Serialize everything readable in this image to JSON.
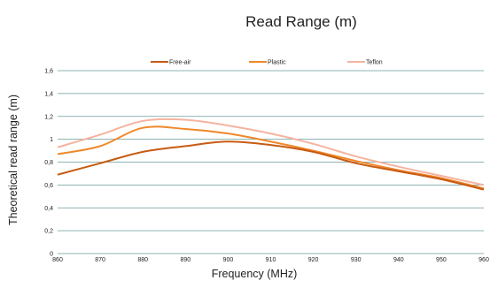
{
  "chart_data": {
    "type": "line",
    "title": "Read Range (m)",
    "xlabel": "Frequency (MHz)",
    "ylabel": "Theoretical read range (m)",
    "xlim": [
      860,
      960
    ],
    "ylim": [
      0,
      1.6
    ],
    "x_ticks": [
      "860",
      "870",
      "880",
      "890",
      "900",
      "910",
      "920",
      "930",
      "940",
      "950",
      "960"
    ],
    "y_ticks": [
      "0",
      "0,2",
      "0,4",
      "0,6",
      "0,8",
      "1",
      "1,2",
      "1,4",
      "1,6"
    ],
    "grid": "horizontal",
    "legend_position": "top",
    "x": [
      860,
      870,
      880,
      890,
      900,
      910,
      920,
      930,
      940,
      950,
      960
    ],
    "series": [
      {
        "name": "Free-air",
        "color": "#c75b12",
        "values": [
          0.69,
          0.79,
          0.89,
          0.94,
          0.98,
          0.95,
          0.89,
          0.79,
          0.72,
          0.65,
          0.56
        ]
      },
      {
        "name": "Plastic",
        "color": "#f0882a",
        "values": [
          0.87,
          0.94,
          1.1,
          1.09,
          1.05,
          0.98,
          0.9,
          0.81,
          0.73,
          0.66,
          0.57
        ]
      },
      {
        "name": "Teflon",
        "color": "#f5b3a0",
        "values": [
          0.93,
          1.04,
          1.16,
          1.17,
          1.12,
          1.05,
          0.96,
          0.85,
          0.76,
          0.68,
          0.6
        ]
      }
    ]
  }
}
